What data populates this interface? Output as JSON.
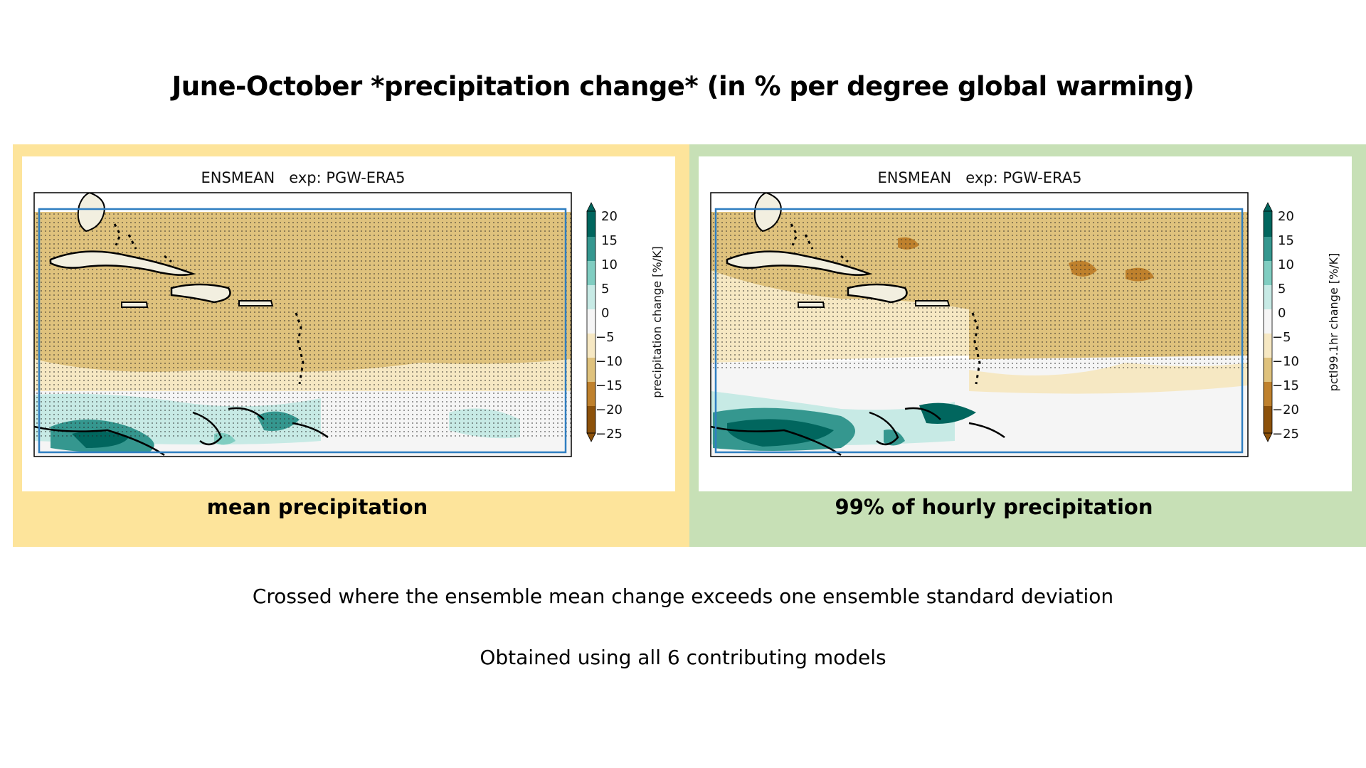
{
  "slide": {
    "title": "June-October *precipitation change* (in % per degree global warming)",
    "notes": [
      "Crossed where the ensemble mean change exceeds one ensemble standard deviation",
      "Obtained using all 6 contributing models"
    ]
  },
  "panels": [
    {
      "plot_title": "ENSMEAN   exp: PGW-ERA5",
      "colorbar_label": "precipitation change [%/K]",
      "caption": "mean precipitation",
      "background": "#fde49b"
    },
    {
      "plot_title": "ENSMEAN   exp: PGW-ERA5",
      "colorbar_label": "pctl99.1hr change [%/K]",
      "caption": "99% of hourly precipitation",
      "background": "#c7e0b6"
    }
  ],
  "colorbar": {
    "ticks": [
      "20",
      "15",
      "10",
      "5",
      "0",
      "−5",
      "−10",
      "−15",
      "−20",
      "−25"
    ],
    "colors": [
      "#01665e",
      "#35978f",
      "#80cdc1",
      "#c7eae5",
      "#f5f5f5",
      "#f6e8c3",
      "#dfc27d",
      "#bf812d",
      "#8c510a"
    ],
    "extend": "both"
  },
  "map_colors": {
    "land": "#f2efe0",
    "domain_box": "#2f7ec1",
    "coast": "#000000"
  }
}
